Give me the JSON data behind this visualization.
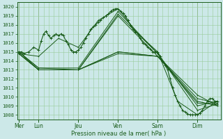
{
  "xlabel": "Pression niveau de la mer( hPa )",
  "bg_color": "#cce8e8",
  "plot_bg_color": "#cce8e8",
  "grid_color": "#99cc99",
  "line_color": "#1a5c1a",
  "ylim": [
    1007.5,
    1020.5
  ],
  "yticks": [
    1008,
    1009,
    1010,
    1011,
    1012,
    1013,
    1014,
    1015,
    1016,
    1017,
    1018,
    1019,
    1020
  ],
  "day_labels": [
    "Mer",
    "Lun",
    "Jeu",
    "Ven",
    "Sam",
    "Dim"
  ],
  "day_positions": [
    0,
    24,
    72,
    120,
    168,
    216
  ],
  "xlim": [
    -2,
    244
  ],
  "series": [
    [
      0,
      1015.0,
      3,
      1015.0,
      6,
      1014.8,
      12,
      1015.0,
      18,
      1015.5,
      24,
      1015.2,
      27,
      1016.2,
      30,
      1017.0,
      33,
      1017.3,
      36,
      1016.8,
      39,
      1016.5,
      42,
      1016.8,
      45,
      1017.0,
      48,
      1016.8,
      51,
      1017.0,
      54,
      1016.8,
      57,
      1016.2,
      60,
      1015.8,
      63,
      1015.2,
      66,
      1015.0,
      69,
      1015.0,
      72,
      1015.2,
      75,
      1015.5,
      78,
      1016.0,
      81,
      1016.5,
      84,
      1017.0,
      87,
      1017.5,
      90,
      1017.8,
      93,
      1018.0,
      96,
      1018.3,
      99,
      1018.5,
      102,
      1018.8,
      105,
      1019.0,
      108,
      1019.2,
      111,
      1019.5,
      114,
      1019.7,
      117,
      1019.8,
      120,
      1019.8,
      123,
      1019.5,
      126,
      1019.3,
      129,
      1019.0,
      132,
      1018.5,
      135,
      1018.0,
      138,
      1017.5,
      141,
      1017.2,
      144,
      1017.0,
      147,
      1016.5,
      150,
      1016.0,
      153,
      1015.8,
      156,
      1015.5,
      159,
      1015.3,
      162,
      1015.0,
      165,
      1015.0,
      168,
      1015.0,
      171,
      1014.5,
      174,
      1014.0,
      177,
      1013.5,
      180,
      1013.0,
      183,
      1012.0,
      186,
      1011.0,
      189,
      1010.2,
      192,
      1009.5,
      195,
      1009.0,
      198,
      1008.5,
      201,
      1008.3,
      204,
      1008.1,
      207,
      1008.0,
      210,
      1008.0,
      213,
      1008.0,
      216,
      1008.0,
      219,
      1008.2,
      222,
      1008.5,
      225,
      1009.0,
      228,
      1009.5,
      231,
      1009.8,
      234,
      1009.8,
      237,
      1009.5,
      240,
      1009.5
    ],
    [
      0,
      1014.8,
      24,
      1014.5,
      48,
      1016.5,
      72,
      1015.5,
      96,
      1018.5,
      120,
      1019.8,
      144,
      1017.0,
      168,
      1015.0,
      192,
      1009.5,
      216,
      1008.0,
      240,
      1009.5
    ],
    [
      0,
      1015.0,
      24,
      1013.2,
      72,
      1013.2,
      120,
      1019.5,
      168,
      1014.8,
      216,
      1008.5,
      240,
      1009.2
    ],
    [
      0,
      1015.0,
      24,
      1013.2,
      72,
      1013.0,
      120,
      1019.2,
      168,
      1014.8,
      216,
      1009.0,
      240,
      1009.5
    ],
    [
      0,
      1015.0,
      24,
      1013.0,
      72,
      1013.0,
      120,
      1019.0,
      168,
      1014.5,
      216,
      1009.3,
      240,
      1009.2
    ],
    [
      0,
      1014.8,
      24,
      1013.0,
      72,
      1013.0,
      120,
      1015.0,
      168,
      1014.5,
      216,
      1009.5,
      240,
      1009.0
    ],
    [
      0,
      1014.8,
      24,
      1013.0,
      72,
      1013.0,
      120,
      1015.0,
      168,
      1014.5,
      216,
      1009.8,
      240,
      1009.3
    ],
    [
      0,
      1014.8,
      24,
      1013.0,
      72,
      1013.0,
      120,
      1014.8,
      168,
      1014.5,
      216,
      1010.2,
      240,
      1009.0
    ]
  ]
}
